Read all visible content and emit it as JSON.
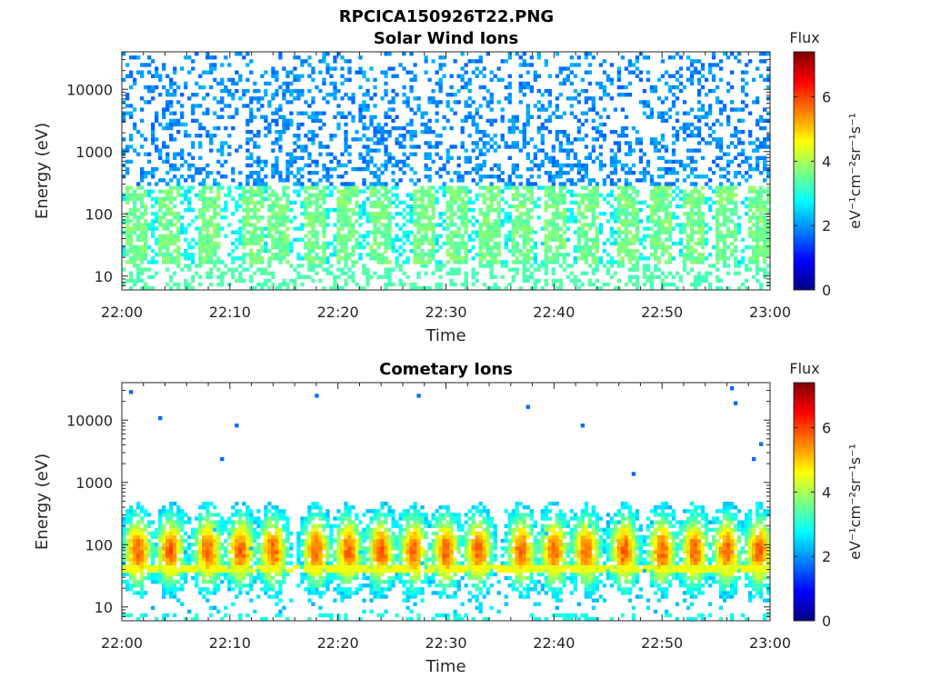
{
  "figure": {
    "title": "RPCICA150926T22.PNG"
  },
  "chart_data": [
    {
      "type": "heatmap",
      "title": "Solar Wind Ions",
      "xlabel": "Time",
      "ylabel": "Energy (eV)",
      "x_range": [
        "22:00",
        "23:00"
      ],
      "x_ticks": [
        "22:00",
        "22:10",
        "22:20",
        "22:30",
        "22:40",
        "22:50",
        "23:00"
      ],
      "y_scale": "log",
      "y_range": [
        6,
        40000
      ],
      "y_ticks": [
        "10",
        "100",
        "1000",
        "10000"
      ],
      "grid": false,
      "colorbar": {
        "label": "Flux",
        "units": "eV⁻¹cm⁻²sr⁻¹s⁻¹",
        "range": [
          0,
          7.4
        ],
        "ticks": [
          "0",
          "2",
          "4",
          "6"
        ],
        "colormap": "jet"
      },
      "texture": {
        "background_flux_range": [
          1.6,
          2.3
        ],
        "background_density": 0.36,
        "energy_band_eV": [
          15,
          300
        ],
        "low_energy_flux": 3.2,
        "burst_peak_flux": 3.6,
        "burst_times_min": [
          1.5,
          4.5,
          8,
          12,
          14.5,
          18,
          21,
          24,
          28,
          31,
          34,
          37,
          40,
          43,
          47,
          50,
          53,
          56,
          59
        ]
      }
    },
    {
      "type": "heatmap",
      "title": "Cometary Ions",
      "xlabel": "Time",
      "ylabel": "Energy (eV)",
      "x_range": [
        "22:00",
        "23:00"
      ],
      "x_ticks": [
        "22:00",
        "22:10",
        "22:20",
        "22:30",
        "22:40",
        "22:50",
        "23:00"
      ],
      "y_scale": "log",
      "y_range": [
        6,
        40000
      ],
      "y_ticks": [
        "10",
        "100",
        "1000",
        "10000"
      ],
      "grid": false,
      "colorbar": {
        "label": "Flux",
        "units": "eV⁻¹cm⁻²sr⁻¹s⁻¹",
        "range": [
          0,
          7.4
        ],
        "ticks": [
          "0",
          "2",
          "4",
          "6"
        ],
        "colormap": "jet"
      },
      "texture": {
        "energy_band_eV": [
          8,
          800
        ],
        "peak_energy_eV": 80,
        "peak_flux": 5.8,
        "line_energy_eV": 42,
        "line_flux": 4.5,
        "burst_times_min": [
          1.5,
          4.5,
          8,
          11,
          14,
          18,
          21,
          24,
          27,
          30,
          33,
          37,
          40,
          43,
          46.5,
          50,
          53,
          56,
          59
        ]
      }
    }
  ]
}
